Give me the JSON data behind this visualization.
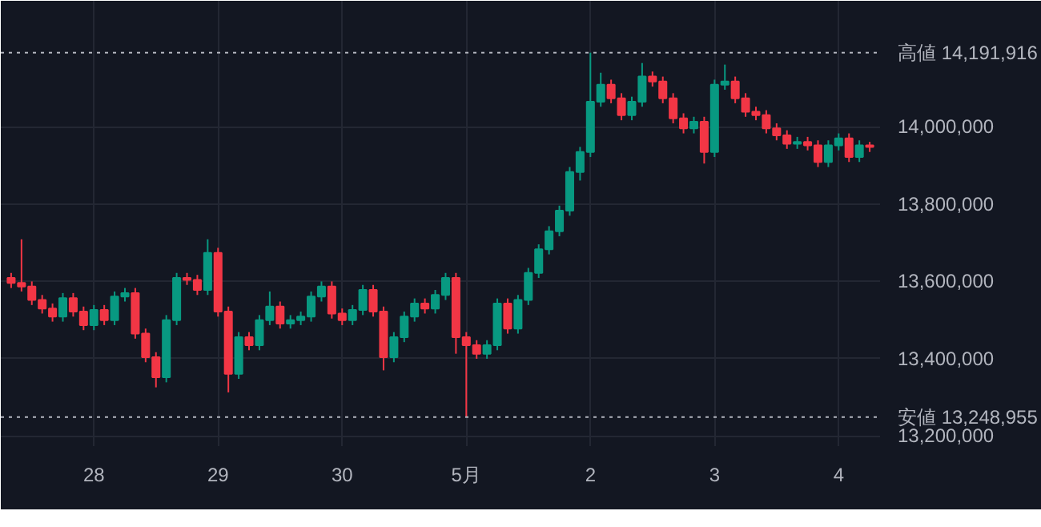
{
  "chart_data": {
    "type": "candlestick",
    "categories": [
      null,
      null,
      null,
      null,
      null,
      null,
      null,
      null,
      "28",
      null,
      null,
      null,
      null,
      null,
      null,
      null,
      null,
      null,
      null,
      null,
      "29",
      null,
      null,
      null,
      null,
      null,
      null,
      null,
      null,
      null,
      null,
      null,
      "30",
      null,
      null,
      null,
      null,
      null,
      null,
      null,
      null,
      null,
      null,
      null,
      "5月",
      null,
      null,
      null,
      null,
      null,
      null,
      null,
      null,
      null,
      null,
      null,
      "2",
      null,
      null,
      null,
      null,
      null,
      null,
      null,
      null,
      null,
      null,
      null,
      "3",
      null,
      null,
      null,
      null,
      null,
      null,
      null,
      null,
      null,
      null,
      null,
      "4",
      null,
      null,
      null
    ],
    "ohlc": [
      [
        13609000,
        13622000,
        13583000,
        13596000
      ],
      [
        13596000,
        13709000,
        13574000,
        13587000
      ],
      [
        13587000,
        13600000,
        13539000,
        13552000
      ],
      [
        13552000,
        13565000,
        13517000,
        13530000
      ],
      [
        13530000,
        13543000,
        13496000,
        13509000
      ],
      [
        13509000,
        13570000,
        13496000,
        13557000
      ],
      [
        13557000,
        13570000,
        13509000,
        13522000
      ],
      [
        13522000,
        13535000,
        13474000,
        13487000
      ],
      [
        13487000,
        13539000,
        13474000,
        13526000
      ],
      [
        13526000,
        13539000,
        13487000,
        13500000
      ],
      [
        13500000,
        13574000,
        13487000,
        13561000
      ],
      [
        13561000,
        13583000,
        13548000,
        13570000
      ],
      [
        13570000,
        13583000,
        13452000,
        13465000
      ],
      [
        13465000,
        13478000,
        13391000,
        13404000
      ],
      [
        13404000,
        13417000,
        13326000,
        13352000
      ],
      [
        13352000,
        13513000,
        13339000,
        13500000
      ],
      [
        13500000,
        13622000,
        13487000,
        13609000
      ],
      [
        13609000,
        13622000,
        13591000,
        13604000
      ],
      [
        13604000,
        13617000,
        13565000,
        13578000
      ],
      [
        13578000,
        13709000,
        13565000,
        13674000
      ],
      [
        13674000,
        13687000,
        13509000,
        13522000
      ],
      [
        13522000,
        13535000,
        13313000,
        13361000
      ],
      [
        13361000,
        13469000,
        13348000,
        13456000
      ],
      [
        13456000,
        13469000,
        13422000,
        13435000
      ],
      [
        13435000,
        13513000,
        13422000,
        13500000
      ],
      [
        13500000,
        13574000,
        13487000,
        13535000
      ],
      [
        13535000,
        13548000,
        13478000,
        13491000
      ],
      [
        13491000,
        13513000,
        13478000,
        13500000
      ],
      [
        13500000,
        13522000,
        13487000,
        13509000
      ],
      [
        13509000,
        13574000,
        13496000,
        13561000
      ],
      [
        13561000,
        13600000,
        13548000,
        13587000
      ],
      [
        13587000,
        13600000,
        13504000,
        13517000
      ],
      [
        13517000,
        13530000,
        13487000,
        13500000
      ],
      [
        13500000,
        13539000,
        13487000,
        13526000
      ],
      [
        13526000,
        13591000,
        13513000,
        13578000
      ],
      [
        13578000,
        13591000,
        13509000,
        13522000
      ],
      [
        13522000,
        13535000,
        13370000,
        13404000
      ],
      [
        13404000,
        13469000,
        13391000,
        13456000
      ],
      [
        13456000,
        13522000,
        13443000,
        13509000
      ],
      [
        13509000,
        13556000,
        13496000,
        13543000
      ],
      [
        13543000,
        13556000,
        13517000,
        13530000
      ],
      [
        13530000,
        13578000,
        13517000,
        13565000
      ],
      [
        13565000,
        13622000,
        13552000,
        13609000
      ],
      [
        13609000,
        13622000,
        13413000,
        13456000
      ],
      [
        13456000,
        13469000,
        13248955,
        13435000
      ],
      [
        13435000,
        13448000,
        13400000,
        13413000
      ],
      [
        13413000,
        13448000,
        13400000,
        13435000
      ],
      [
        13435000,
        13556000,
        13422000,
        13543000
      ],
      [
        13543000,
        13556000,
        13465000,
        13478000
      ],
      [
        13478000,
        13565000,
        13465000,
        13552000
      ],
      [
        13552000,
        13635000,
        13539000,
        13622000
      ],
      [
        13622000,
        13696000,
        13609000,
        13683000
      ],
      [
        13683000,
        13743000,
        13670000,
        13730000
      ],
      [
        13730000,
        13796000,
        13717000,
        13783000
      ],
      [
        13783000,
        13896000,
        13770000,
        13883000
      ],
      [
        13883000,
        13948000,
        13861000,
        13935000
      ],
      [
        13935000,
        14191916,
        13922000,
        14065000
      ],
      [
        14065000,
        14140000,
        14052000,
        14109000
      ],
      [
        14109000,
        14122000,
        14061000,
        14074000
      ],
      [
        14074000,
        14087000,
        14017000,
        14030000
      ],
      [
        14030000,
        14078000,
        14017000,
        14065000
      ],
      [
        14065000,
        14165000,
        14052000,
        14130000
      ],
      [
        14130000,
        14143000,
        14104000,
        14117000
      ],
      [
        14117000,
        14130000,
        14061000,
        14074000
      ],
      [
        14074000,
        14087000,
        14009000,
        14022000
      ],
      [
        14022000,
        14035000,
        13983000,
        13996000
      ],
      [
        13996000,
        14026000,
        13983000,
        14013000
      ],
      [
        14013000,
        14026000,
        13905000,
        13935000
      ],
      [
        13935000,
        14122000,
        13922000,
        14109000
      ],
      [
        14109000,
        14161000,
        14096000,
        14117000
      ],
      [
        14117000,
        14130000,
        14061000,
        14074000
      ],
      [
        14074000,
        14087000,
        14026000,
        14039000
      ],
      [
        14039000,
        14052000,
        14017000,
        14030000
      ],
      [
        14030000,
        14043000,
        13983000,
        13996000
      ],
      [
        13996000,
        14009000,
        13965000,
        13978000
      ],
      [
        13978000,
        13991000,
        13943000,
        13956000
      ],
      [
        13956000,
        13974000,
        13943000,
        13961000
      ],
      [
        13961000,
        13974000,
        13939000,
        13952000
      ],
      [
        13952000,
        13965000,
        13896000,
        13909000
      ],
      [
        13909000,
        13965000,
        13896000,
        13952000
      ],
      [
        13952000,
        13983000,
        13939000,
        13970000
      ],
      [
        13970000,
        13983000,
        13909000,
        13922000
      ],
      [
        13922000,
        13965000,
        13909000,
        13952000
      ],
      [
        13952000,
        13961000,
        13935000,
        13948000
      ]
    ],
    "colors": [
      "#f23645",
      "#f23645",
      "#f23645",
      "#f23645",
      "#f23645",
      "#089981",
      "#f23645",
      "#f23645",
      "#089981",
      "#f23645",
      "#089981",
      "#089981",
      "#f23645",
      "#f23645",
      "#f23645",
      "#089981",
      "#089981",
      "#f23645",
      "#f23645",
      "#089981",
      "#f23645",
      "#f23645",
      "#089981",
      "#f23645",
      "#089981",
      "#089981",
      "#f23645",
      "#089981",
      "#089981",
      "#089981",
      "#089981",
      "#f23645",
      "#f23645",
      "#089981",
      "#089981",
      "#f23645",
      "#f23645",
      "#089981",
      "#089981",
      "#089981",
      "#f23645",
      "#089981",
      "#089981",
      "#f23645",
      "#f23645",
      "#f23645",
      "#089981",
      "#089981",
      "#f23645",
      "#089981",
      "#089981",
      "#089981",
      "#089981",
      "#089981",
      "#089981",
      "#089981",
      "#089981",
      "#089981",
      "#f23645",
      "#f23645",
      "#089981",
      "#089981",
      "#f23645",
      "#f23645",
      "#f23645",
      "#f23645",
      "#089981",
      "#f23645",
      "#089981",
      "#089981",
      "#f23645",
      "#f23645",
      "#f23645",
      "#f23645",
      "#f23645",
      "#f23645",
      "#089981",
      "#f23645",
      "#f23645",
      "#089981",
      "#089981",
      "#f23645",
      "#089981",
      "#f23645"
    ],
    "ylim": [
      13174000,
      14326000
    ],
    "yticks": [
      {
        "value": 13200000,
        "label": "13,200,000"
      },
      {
        "value": 13400000,
        "label": "13,400,000"
      },
      {
        "value": 13600000,
        "label": "13,600,000"
      },
      {
        "value": 13800000,
        "label": "13,800,000"
      },
      {
        "value": 14000000,
        "label": "14,000,000"
      }
    ],
    "grid": true,
    "ref_lines": [
      {
        "axis": "y",
        "value": 14191916,
        "label": "高値 14,191,916",
        "color": "#b2b5be",
        "line_style": "dotted"
      },
      {
        "axis": "y",
        "value": 13248955,
        "label": "安値 13,248,955",
        "color": "#b2b5be",
        "line_style": "dotted"
      }
    ]
  }
}
